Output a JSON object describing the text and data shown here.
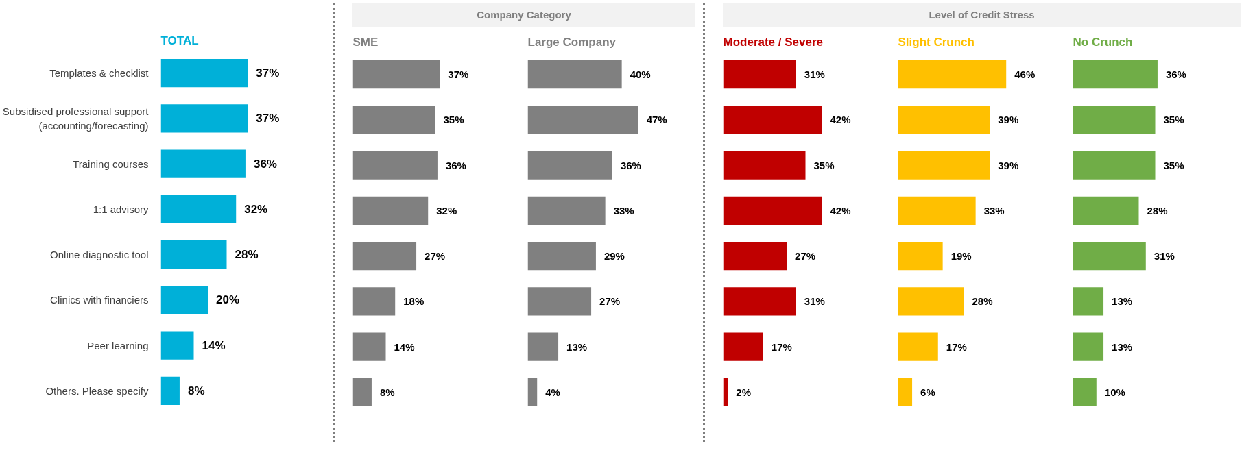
{
  "chart_data": [
    {
      "type": "bar",
      "orientation": "horizontal",
      "title": "TOTAL",
      "tick_labels": "y",
      "categories": [
        "Templates & checklist",
        "Subsidised professional support (accounting/forecasting)",
        "Training courses",
        "1:1 advisory",
        "Online diagnostic tool",
        "Clinics with financiers",
        "Peer learning",
        "Others. Please specify"
      ],
      "series": [
        {
          "color": "#00b0d8",
          "values": [
            37,
            37,
            36,
            32,
            28,
            20,
            14,
            8
          ],
          "value_labels": [
            "37%",
            "37%",
            "36%",
            "32%",
            "28%",
            "20%",
            "14%",
            "8%"
          ]
        }
      ]
    },
    {
      "type": "bar",
      "orientation": "horizontal",
      "title": "SME",
      "annotations": [
        "Company Category"
      ],
      "tick_labels": false,
      "categories": [
        null,
        null,
        null,
        null,
        null,
        null,
        null,
        null
      ],
      "series": [
        {
          "color": "#808080",
          "values": [
            37,
            35,
            36,
            32,
            27,
            18,
            14,
            8
          ],
          "value_labels": [
            "37%",
            "35%",
            "36%",
            "32%",
            "27%",
            "18%",
            "14%",
            "8%"
          ]
        }
      ]
    },
    {
      "type": "bar",
      "orientation": "horizontal",
      "title": "Large Company",
      "tick_labels": false,
      "categories": [
        null,
        null,
        null,
        null,
        null,
        null,
        null,
        null
      ],
      "series": [
        {
          "color": "#808080",
          "values": [
            40,
            47,
            36,
            33,
            29,
            27,
            13,
            4
          ],
          "value_labels": [
            "40%",
            "47%",
            "36%",
            "33%",
            "29%",
            "27%",
            "13%",
            "4%"
          ]
        }
      ]
    },
    {
      "type": "bar",
      "orientation": "horizontal",
      "title": "Moderate / Severe",
      "annotations": [
        "Level of Credit Stress"
      ],
      "tick_labels": false,
      "categories": [
        null,
        null,
        null,
        null,
        null,
        null,
        null,
        null
      ],
      "series": [
        {
          "color": "#c00000",
          "values": [
            31,
            42,
            35,
            42,
            27,
            31,
            17,
            2
          ],
          "value_labels": [
            "31%",
            "42%",
            "35%",
            "42%",
            "27%",
            "31%",
            "17%",
            "2%"
          ]
        }
      ]
    },
    {
      "type": "bar",
      "orientation": "horizontal",
      "title": "Slight Crunch",
      "tick_labels": false,
      "categories": [
        null,
        null,
        null,
        null,
        null,
        null,
        null,
        null
      ],
      "series": [
        {
          "color": "#ffc000",
          "values": [
            46,
            39,
            39,
            33,
            19,
            28,
            17,
            6
          ],
          "value_labels": [
            "46%",
            "39%",
            "39%",
            "33%",
            "19%",
            "28%",
            "17%",
            "6%"
          ]
        }
      ]
    },
    {
      "type": "bar",
      "orientation": "horizontal",
      "title": "No Crunch",
      "tick_labels": false,
      "categories": [
        null,
        null,
        null,
        null,
        null,
        null,
        null,
        null
      ],
      "series": [
        {
          "color": "#70ad47",
          "values": [
            36,
            35,
            35,
            28,
            31,
            13,
            13,
            10
          ],
          "value_labels": [
            "36%",
            "35%",
            "35%",
            "28%",
            "31%",
            "13%",
            "13%",
            "10%"
          ]
        }
      ]
    }
  ]
}
